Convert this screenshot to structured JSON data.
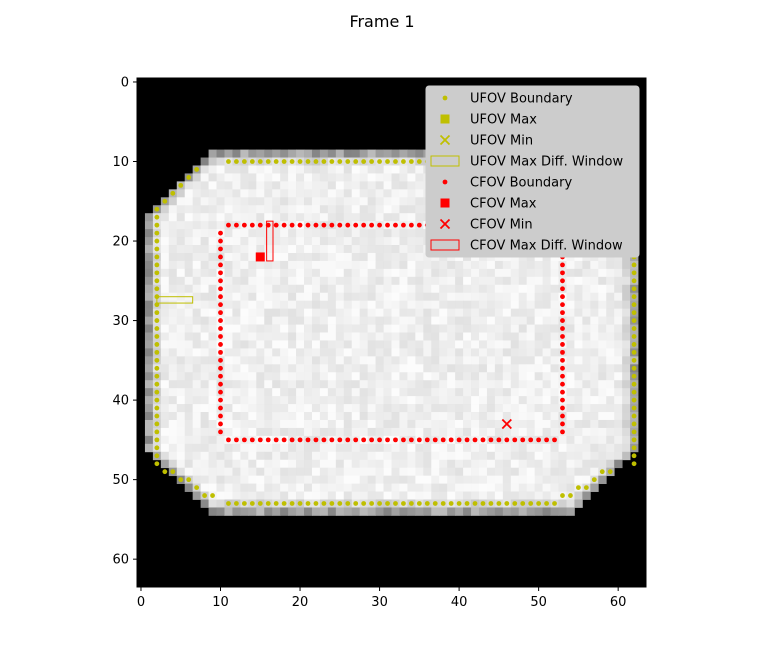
{
  "chart_data": {
    "type": "scatter",
    "title": "Frame 1",
    "xlabel": "",
    "ylabel": "",
    "image_grid": {
      "cols": 64,
      "rows": 64
    },
    "xlim": [
      -0.5,
      63.5
    ],
    "ylim": [
      63.5,
      -0.5
    ],
    "x_ticks": [
      0,
      10,
      20,
      30,
      40,
      50,
      60
    ],
    "y_ticks": [
      0,
      10,
      20,
      30,
      40,
      50,
      60
    ],
    "x_tick_labels": [
      "0",
      "10",
      "20",
      "30",
      "40",
      "50",
      "60"
    ],
    "y_tick_labels": [
      "0",
      "10",
      "20",
      "30",
      "40",
      "50",
      "60"
    ],
    "grid": false,
    "legend_position": "top-right",
    "colors": {
      "ufov": "#bfbf00",
      "cfov": "#ff0000"
    },
    "image_region": {
      "top_row": 9,
      "bottom_row": 54,
      "left_col": 1,
      "right_col": 62,
      "corner_cut": 8,
      "background": "black",
      "interior": "light gray noise"
    },
    "ufov_boundary": {
      "top_row": 10,
      "bottom_row": 53,
      "left_col": 2,
      "right_col": 62,
      "top_x_range": [
        11,
        52
      ],
      "bottom_x_range": [
        11,
        52
      ],
      "side_y_range": [
        19,
        44
      ],
      "corner_diagonals": [
        [
          [
            7,
            11
          ],
          [
            6,
            12
          ],
          [
            5,
            13
          ],
          [
            4,
            14
          ],
          [
            3,
            15
          ],
          [
            2,
            16
          ]
        ],
        [
          [
            53,
            11
          ],
          [
            54,
            11
          ],
          [
            55,
            12
          ],
          [
            56,
            13
          ],
          [
            57,
            14
          ],
          [
            58,
            15
          ],
          [
            59,
            16
          ]
        ],
        [
          [
            3,
            49
          ],
          [
            4,
            49
          ],
          [
            5,
            50
          ],
          [
            6,
            50
          ],
          [
            7,
            51
          ],
          [
            8,
            52
          ],
          [
            9,
            52
          ]
        ],
        [
          [
            53,
            52
          ],
          [
            54,
            52
          ],
          [
            55,
            51
          ],
          [
            56,
            51
          ],
          [
            57,
            50
          ],
          [
            58,
            49
          ],
          [
            59,
            49
          ]
        ]
      ]
    },
    "cfov_boundary": {
      "top_row": 18,
      "bottom_row": 45,
      "left_col": 10,
      "right_col": 53
    },
    "ufov_max": null,
    "ufov_min": null,
    "ufov_max_window": {
      "x": [
        2,
        6.5
      ],
      "y": [
        27,
        27.8
      ]
    },
    "cfov_max": {
      "x": 15,
      "y": 22
    },
    "cfov_min": {
      "x": 46,
      "y": 43
    },
    "cfov_max_window": {
      "x": [
        15.8,
        16.6
      ],
      "y": [
        17.5,
        22.5
      ]
    },
    "legend": [
      {
        "label": "UFOV Boundary",
        "marker": "dot",
        "color": "#bfbf00"
      },
      {
        "label": "UFOV Max",
        "marker": "square",
        "color": "#bfbf00"
      },
      {
        "label": "UFOV Min",
        "marker": "x",
        "color": "#bfbf00"
      },
      {
        "label": "UFOV Max Diff. Window",
        "marker": "rect",
        "color": "#bfbf00"
      },
      {
        "label": "CFOV Boundary",
        "marker": "dot",
        "color": "#ff0000"
      },
      {
        "label": "CFOV Max",
        "marker": "square",
        "color": "#ff0000"
      },
      {
        "label": "CFOV Min",
        "marker": "x",
        "color": "#ff0000"
      },
      {
        "label": "CFOV Max Diff. Window",
        "marker": "rect",
        "color": "#ff0000"
      }
    ]
  }
}
